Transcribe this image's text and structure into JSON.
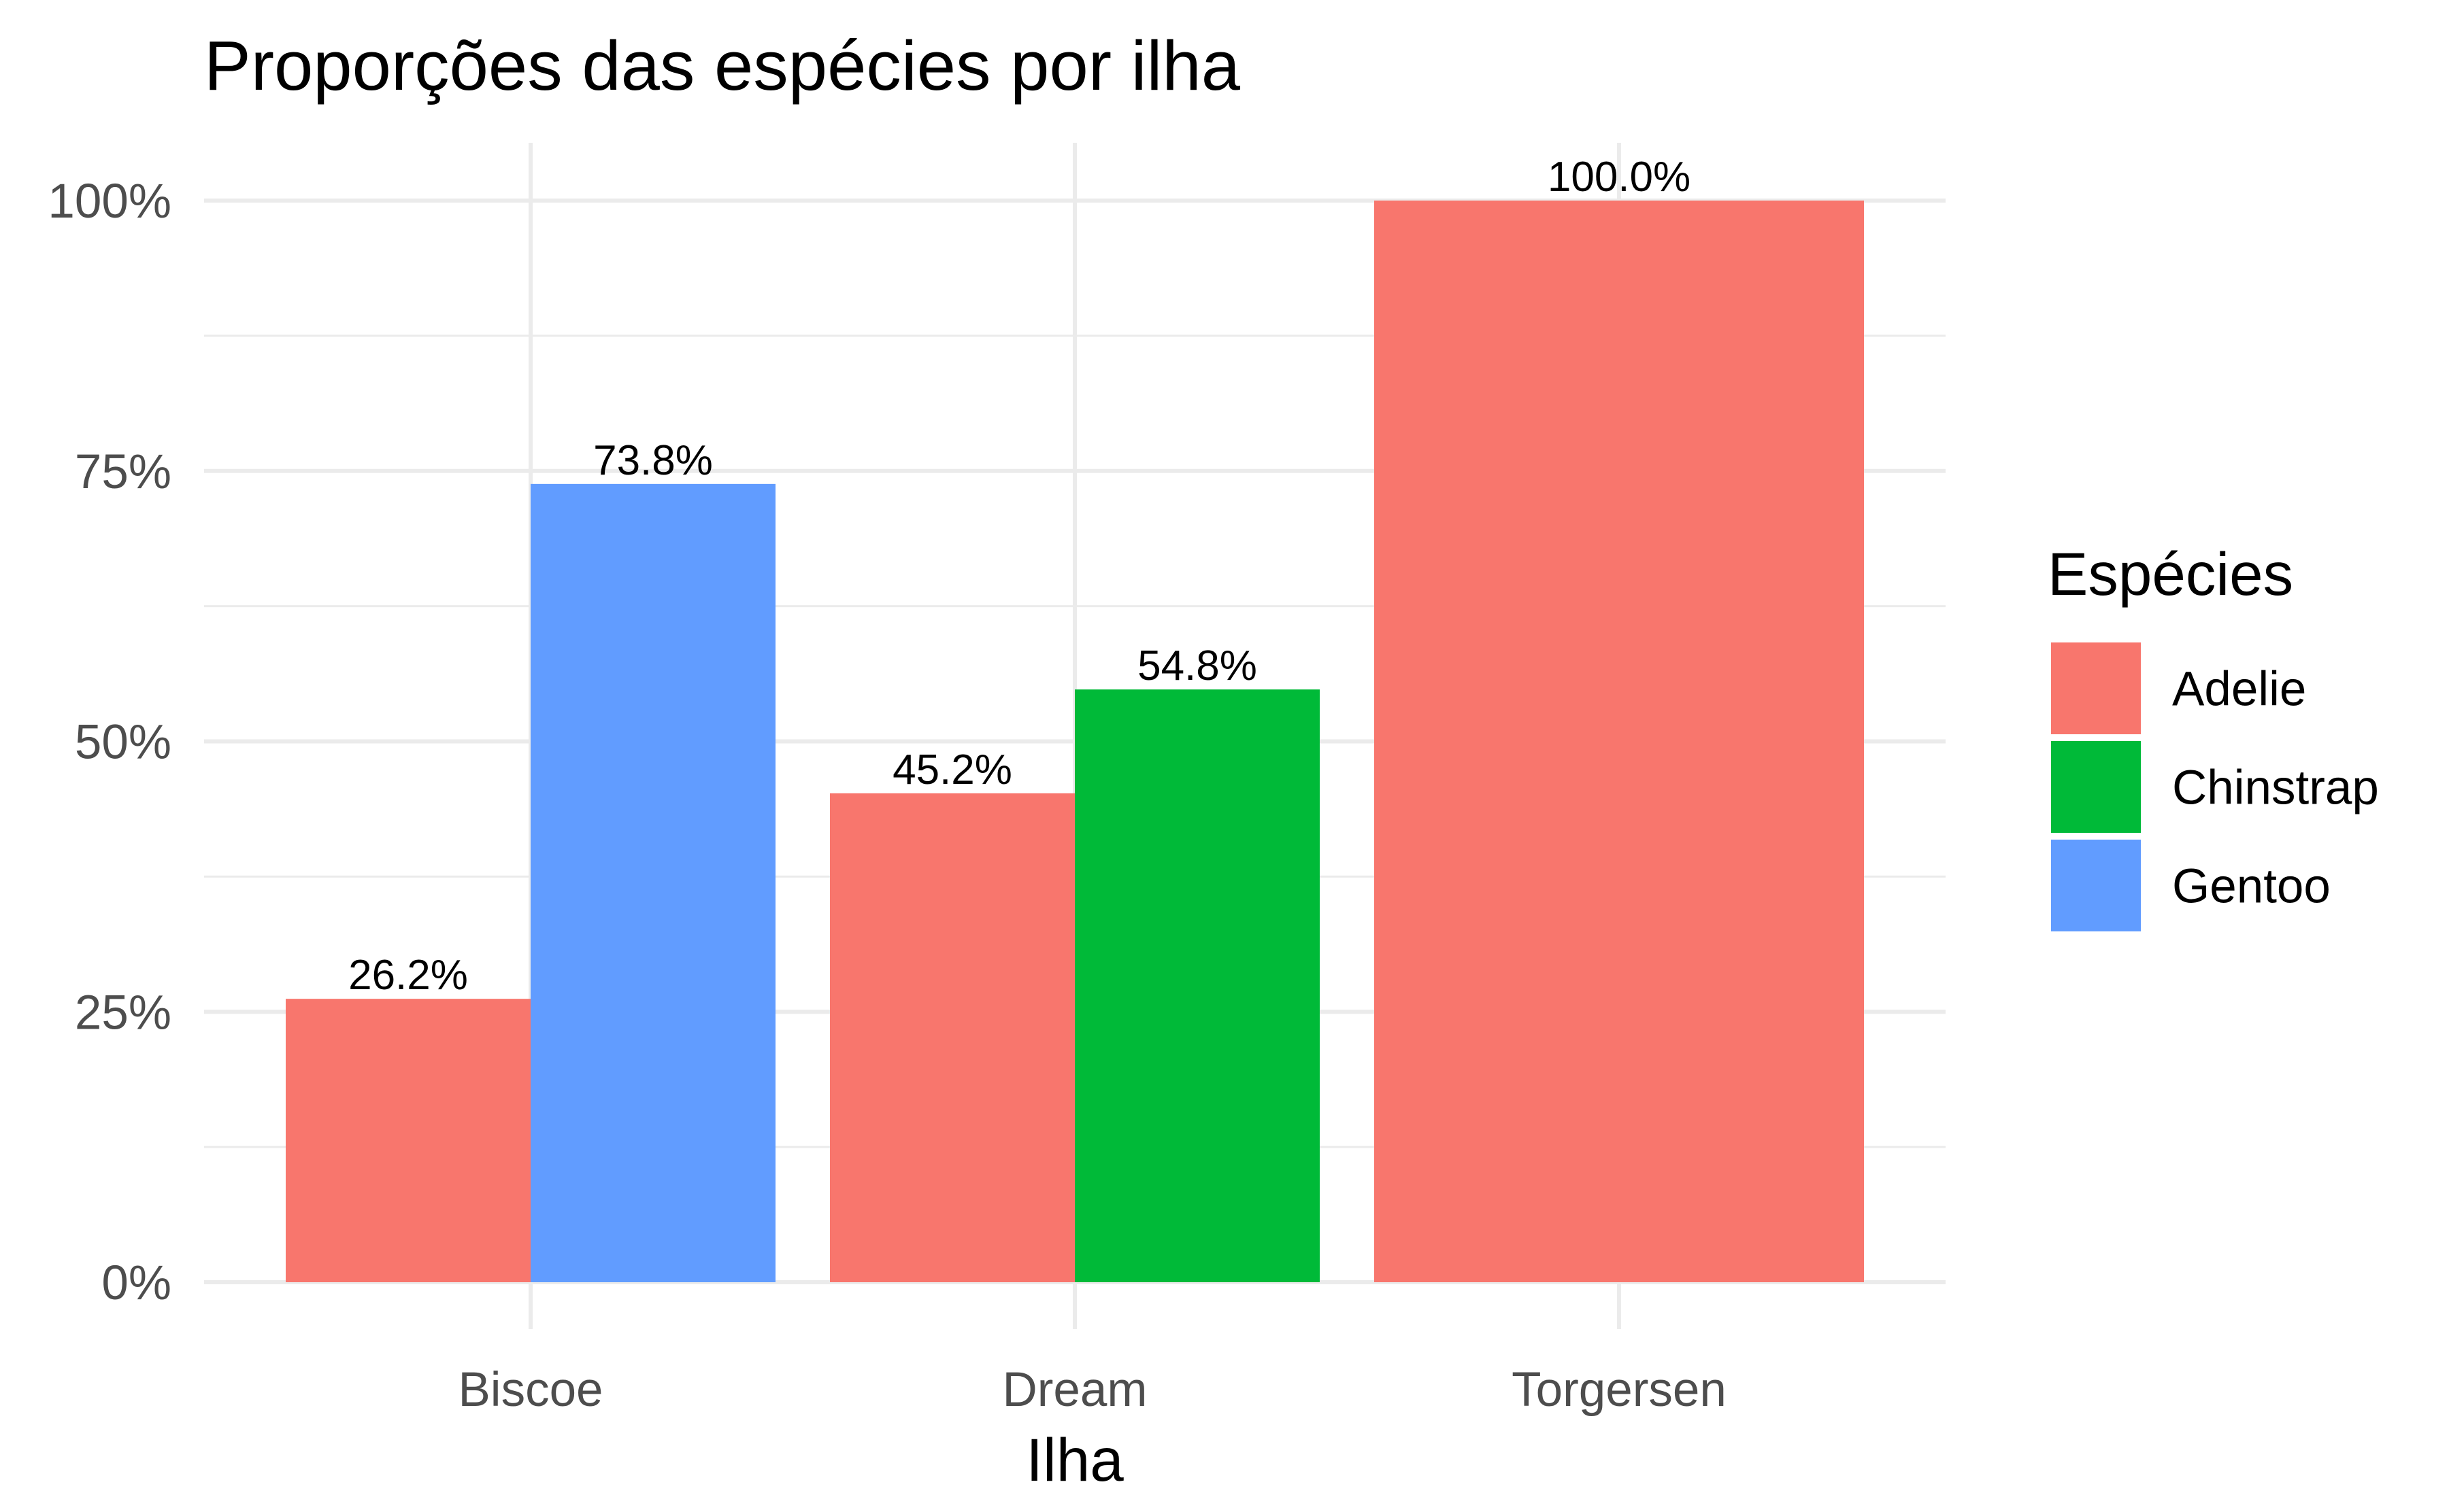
{
  "chart_data": {
    "type": "bar",
    "title": "Proporções das espécies por ilha",
    "xlabel": "Ilha",
    "ylabel": "",
    "categories": [
      "Biscoe",
      "Dream",
      "Torgersen"
    ],
    "ylim": [
      0,
      1
    ],
    "y_ticks": [
      0,
      0.25,
      0.5,
      0.75,
      1
    ],
    "y_tick_labels": [
      "0%",
      "25%",
      "50%",
      "75%",
      "100%"
    ],
    "grid": true,
    "legend": {
      "title": "Espécies",
      "position": "right"
    },
    "series": [
      {
        "name": "Adelie",
        "color": "#F8766D",
        "values": [
          0.262,
          0.452,
          1.0
        ],
        "labels": [
          "26.2%",
          "45.2%",
          "100.0%"
        ]
      },
      {
        "name": "Chinstrap",
        "color": "#00BA38",
        "values": [
          null,
          0.548,
          null
        ],
        "labels": [
          "",
          "54.8%",
          ""
        ]
      },
      {
        "name": "Gentoo",
        "color": "#619CFF",
        "values": [
          0.738,
          null,
          null
        ],
        "labels": [
          "73.8%",
          "",
          ""
        ]
      }
    ]
  }
}
